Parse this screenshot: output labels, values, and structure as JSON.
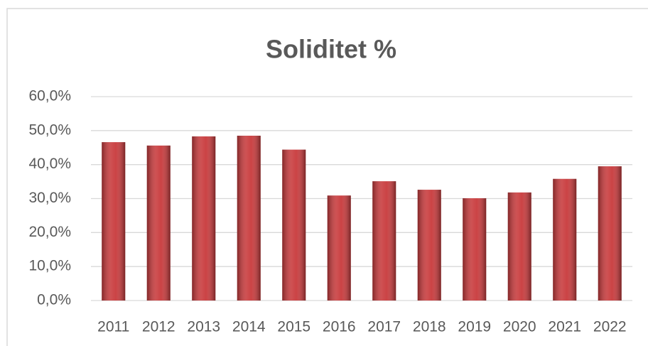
{
  "chart_data": {
    "type": "bar",
    "title": "Soliditet %",
    "categories": [
      "2011",
      "2012",
      "2013",
      "2014",
      "2015",
      "2016",
      "2017",
      "2018",
      "2019",
      "2020",
      "2021",
      "2022"
    ],
    "values": [
      46.6,
      45.6,
      48.3,
      48.5,
      44.4,
      30.9,
      35.1,
      32.6,
      30.1,
      31.8,
      35.8,
      39.5
    ],
    "color": "#c8393b",
    "ylim": [
      0,
      60
    ],
    "yticks": [
      {
        "value": 0,
        "label": "0,0%"
      },
      {
        "value": 10,
        "label": "10,0%"
      },
      {
        "value": 20,
        "label": "20,0%"
      },
      {
        "value": 30,
        "label": "30,0%"
      },
      {
        "value": 40,
        "label": "40,0%"
      },
      {
        "value": 50,
        "label": "50,0%"
      },
      {
        "value": 60,
        "label": "60,0%"
      }
    ],
    "grid": true
  }
}
